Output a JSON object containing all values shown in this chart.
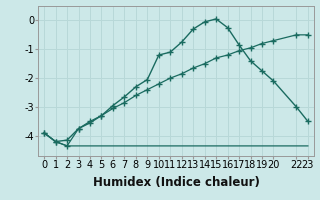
{
  "xlabel": "Humidex (Indice chaleur)",
  "bg_color": "#cce8e8",
  "grid_color": "#b8d8d8",
  "line_color": "#1a6b60",
  "xlim": [
    -0.5,
    23.5
  ],
  "ylim": [
    -4.7,
    0.5
  ],
  "yticks": [
    0,
    -1,
    -2,
    -3,
    -4
  ],
  "xticks": [
    0,
    1,
    2,
    3,
    4,
    5,
    6,
    7,
    8,
    9,
    10,
    11,
    12,
    13,
    14,
    15,
    16,
    17,
    18,
    19,
    20,
    22,
    23
  ],
  "xtick_labels": [
    "0",
    "1",
    "2",
    "3",
    "4",
    "5",
    "6",
    "7",
    "8",
    "9",
    "10",
    "11",
    "12",
    "13",
    "14",
    "15",
    "16",
    "17",
    "18",
    "19",
    "20",
    "22",
    "23"
  ],
  "line1_x": [
    0,
    1,
    2,
    3,
    4,
    5,
    6,
    7,
    8,
    9,
    10,
    11,
    12,
    13,
    14,
    15,
    16,
    17,
    18,
    19,
    20,
    22,
    23
  ],
  "line1_y": [
    -3.9,
    -4.2,
    -4.15,
    -3.75,
    -3.55,
    -3.3,
    -2.95,
    -2.65,
    -2.3,
    -2.05,
    -1.2,
    -1.1,
    -0.75,
    -0.3,
    -0.05,
    0.05,
    -0.25,
    -0.85,
    -1.4,
    -1.75,
    -2.1,
    -3.0,
    -3.5
  ],
  "line2_x": [
    0,
    1,
    2,
    3,
    4,
    5,
    6,
    7,
    8,
    9,
    10,
    11,
    12,
    13,
    14,
    15,
    16,
    17,
    18,
    19,
    20,
    22,
    23
  ],
  "line2_y": [
    -3.9,
    -4.2,
    -4.35,
    -3.75,
    -3.5,
    -3.3,
    -3.05,
    -2.85,
    -2.6,
    -2.4,
    -2.2,
    -2.0,
    -1.85,
    -1.65,
    -1.5,
    -1.3,
    -1.2,
    -1.05,
    -0.95,
    -0.8,
    -0.7,
    -0.5,
    -0.5
  ],
  "line3_x": [
    0,
    1,
    2,
    3,
    22,
    23
  ],
  "line3_y": [
    -3.9,
    -4.2,
    -4.35,
    -4.35,
    -4.35,
    -4.35
  ],
  "font_size_label": 8.5,
  "font_size_tick": 7
}
